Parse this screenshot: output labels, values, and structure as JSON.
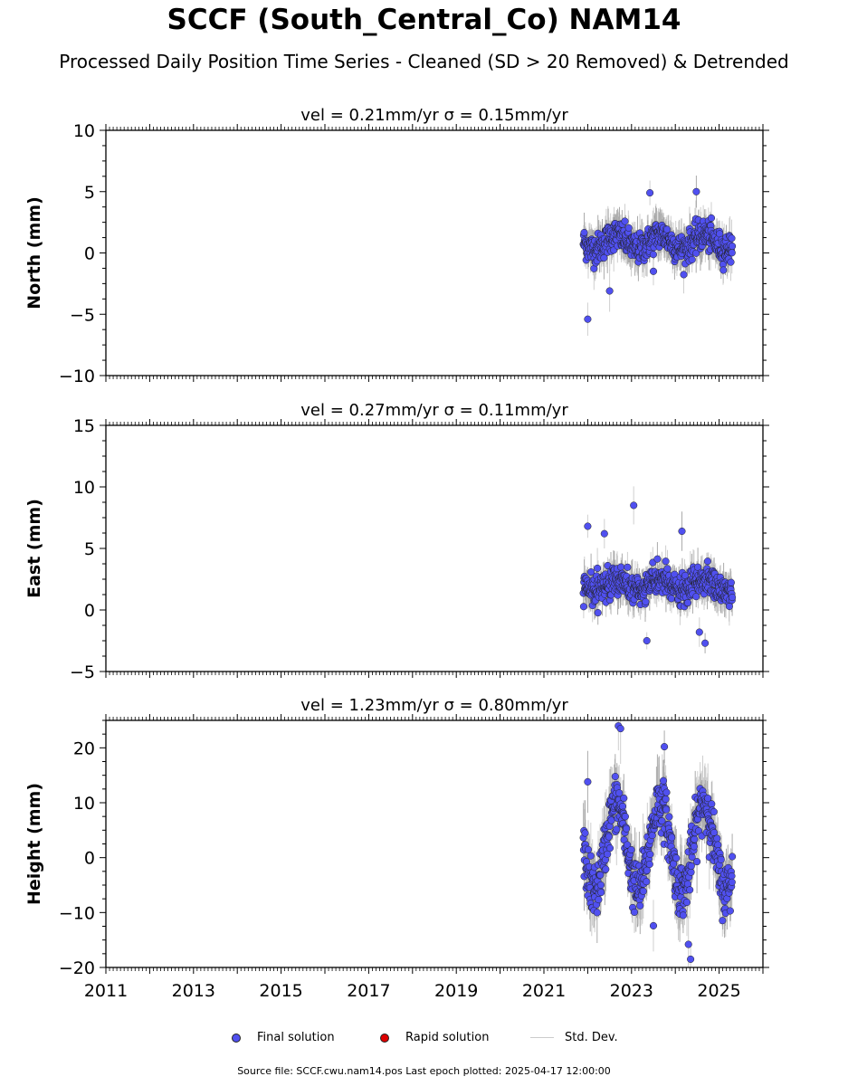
{
  "title": "SCCF (South_Central_Co) NAM14",
  "subtitle": "Processed Daily Position Time Series - Cleaned (SD > 20 Removed) & Detrended",
  "colors": {
    "final": "#5050f0",
    "rapid": "#dd0000",
    "stddev": "#bbbbbb",
    "edge": "#222222"
  },
  "legend": {
    "final": "Final solution",
    "rapid": "Rapid solution",
    "stddev": "Std. Dev."
  },
  "footer": "Source file: SCCF.cwu.nam14.pos  Last epoch plotted: 2025-04-17 12:00:00",
  "chart_data": [
    {
      "type": "scatter",
      "title": "vel = 0.21mm/yr   σ = 0.15mm/yr",
      "ylabel": "North (mm)",
      "xlim": [
        2011,
        2026
      ],
      "ylim": [
        -10,
        10
      ],
      "yticks": [
        -10,
        -5,
        0,
        5,
        10
      ],
      "xticks": [],
      "series": [
        {
          "name": "Final solution",
          "x_range": [
            2021.9,
            2025.3
          ],
          "center": 0.9,
          "seasonal_amp": 0.6,
          "noise": 1.0,
          "sd": 1.2,
          "outliers": [
            [
              2022.0,
              -5.4
            ],
            [
              2023.42,
              4.9
            ],
            [
              2024.48,
              5.0
            ],
            [
              2023.5,
              -1.5
            ],
            [
              2022.5,
              -3.1
            ]
          ]
        }
      ]
    },
    {
      "type": "scatter",
      "title": "vel = 0.27mm/yr   σ = 0.11mm/yr",
      "ylabel": "East (mm)",
      "xlim": [
        2011,
        2026
      ],
      "ylim": [
        -5,
        15
      ],
      "yticks": [
        -5,
        0,
        5,
        10,
        15
      ],
      "xticks": [],
      "series": [
        {
          "name": "Final solution",
          "x_range": [
            2021.9,
            2025.3
          ],
          "center": 2.0,
          "seasonal_amp": 0.5,
          "noise": 1.0,
          "sd": 1.1,
          "outliers": [
            [
              2023.05,
              8.5
            ],
            [
              2022.0,
              6.8
            ],
            [
              2024.15,
              6.4
            ],
            [
              2022.38,
              6.2
            ],
            [
              2023.35,
              -2.5
            ],
            [
              2024.68,
              -2.7
            ],
            [
              2024.55,
              -1.8
            ]
          ]
        }
      ]
    },
    {
      "type": "scatter",
      "title": "vel = 1.23mm/yr   σ = 0.80mm/yr",
      "ylabel": "Height (mm)",
      "xlim": [
        2011,
        2026
      ],
      "ylim": [
        -20,
        25
      ],
      "yticks": [
        -20,
        -10,
        0,
        10,
        20
      ],
      "xticks": [
        "2011",
        "2013",
        "2015",
        "2017",
        "2019",
        "2021",
        "2023",
        "2025"
      ],
      "series": [
        {
          "name": "Final solution",
          "x_range": [
            2021.9,
            2025.3
          ],
          "center": 2.0,
          "seasonal_amp": 8.0,
          "noise": 4.0,
          "sd": 4.5,
          "outliers": [
            [
              2022.7,
              24.0
            ],
            [
              2022.75,
              23.5
            ],
            [
              2023.75,
              20.2
            ],
            [
              2024.35,
              -18.5
            ],
            [
              2024.3,
              -15.8
            ],
            [
              2022.0,
              13.8
            ],
            [
              2023.5,
              -12.4
            ]
          ]
        }
      ]
    }
  ]
}
